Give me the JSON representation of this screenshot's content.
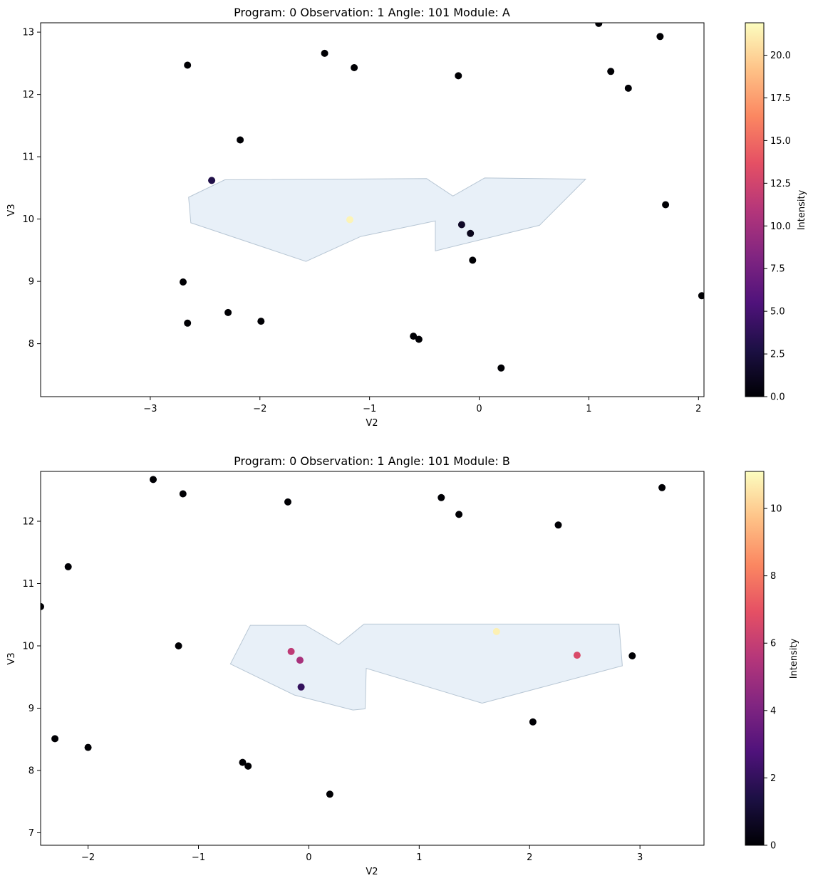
{
  "chart_data": [
    {
      "type": "scatter",
      "title": "Program: 0 Observation: 1 Angle: 101 Module: A",
      "xlabel": "V2",
      "ylabel": "V3",
      "xlim": [
        -4.0,
        2.05
      ],
      "ylim": [
        7.15,
        13.15
      ],
      "xticks": [
        -3,
        -2,
        -1,
        0,
        1,
        2
      ],
      "yticks": [
        8,
        9,
        10,
        11,
        12,
        13
      ],
      "grid": false,
      "colorbar": {
        "label": "Intensity",
        "colormap": "magma",
        "range": [
          0,
          21.9
        ],
        "ticks": [
          "0.0",
          "2.5",
          "5.0",
          "7.5",
          "10.0",
          "12.5",
          "15.0",
          "17.5",
          "20.0"
        ],
        "tick_values": [
          0,
          2.5,
          5,
          7.5,
          10,
          12.5,
          15,
          17.5,
          20
        ]
      },
      "footprint": {
        "fill": "#dce8f4",
        "vertices": [
          [
            -2.65,
            10.35
          ],
          [
            -2.32,
            10.63
          ],
          [
            -0.48,
            10.65
          ],
          [
            -0.24,
            10.37
          ],
          [
            0.05,
            10.66
          ],
          [
            0.97,
            10.64
          ],
          [
            0.55,
            9.9
          ],
          [
            -0.4,
            9.49
          ],
          [
            -0.4,
            9.97
          ],
          [
            -1.08,
            9.72
          ],
          [
            -1.58,
            9.32
          ],
          [
            -2.63,
            9.94
          ]
        ]
      },
      "points": [
        {
          "x": -2.66,
          "y": 12.47,
          "v": 0
        },
        {
          "x": -1.41,
          "y": 12.66,
          "v": 0
        },
        {
          "x": -1.14,
          "y": 12.43,
          "v": 0
        },
        {
          "x": -0.19,
          "y": 12.3,
          "v": 0
        },
        {
          "x": 1.09,
          "y": 13.14,
          "v": 0
        },
        {
          "x": 1.65,
          "y": 12.93,
          "v": 0
        },
        {
          "x": 1.2,
          "y": 12.37,
          "v": 0
        },
        {
          "x": 1.36,
          "y": 12.1,
          "v": 0
        },
        {
          "x": -2.18,
          "y": 11.27,
          "v": 0
        },
        {
          "x": -2.44,
          "y": 10.62,
          "v": 3.0
        },
        {
          "x": -1.18,
          "y": 9.99,
          "v": 21.5
        },
        {
          "x": -0.16,
          "y": 9.91,
          "v": 1.5
        },
        {
          "x": -0.08,
          "y": 9.77,
          "v": 1.0
        },
        {
          "x": -0.06,
          "y": 9.34,
          "v": 0
        },
        {
          "x": 1.7,
          "y": 10.23,
          "v": 0
        },
        {
          "x": -2.7,
          "y": 8.99,
          "v": 0
        },
        {
          "x": -2.29,
          "y": 8.5,
          "v": 0
        },
        {
          "x": -2.66,
          "y": 8.33,
          "v": 0
        },
        {
          "x": -1.99,
          "y": 8.36,
          "v": 0
        },
        {
          "x": -0.6,
          "y": 8.12,
          "v": 0
        },
        {
          "x": -0.55,
          "y": 8.07,
          "v": 0
        },
        {
          "x": 0.2,
          "y": 7.61,
          "v": 0
        },
        {
          "x": 2.03,
          "y": 8.77,
          "v": 0
        }
      ]
    },
    {
      "type": "scatter",
      "title": "Program: 0 Observation: 1 Angle: 101 Module: B",
      "xlabel": "V2",
      "ylabel": "V3",
      "xlim": [
        -2.43,
        3.58
      ],
      "ylim": [
        6.8,
        12.8
      ],
      "xticks": [
        -2,
        -1,
        0,
        1,
        2,
        3
      ],
      "yticks": [
        7,
        8,
        9,
        10,
        11,
        12
      ],
      "grid": false,
      "colorbar": {
        "label": "Intensity",
        "colormap": "magma",
        "range": [
          0,
          11.1
        ],
        "ticks": [
          "0",
          "2",
          "4",
          "6",
          "8",
          "10"
        ],
        "tick_values": [
          0,
          2,
          4,
          6,
          8,
          10
        ]
      },
      "footprint": {
        "fill": "#dce8f4",
        "vertices": [
          [
            -0.53,
            10.33
          ],
          [
            -0.03,
            10.33
          ],
          [
            0.27,
            10.02
          ],
          [
            0.5,
            10.35
          ],
          [
            2.81,
            10.35
          ],
          [
            2.84,
            9.68
          ],
          [
            1.57,
            9.08
          ],
          [
            0.52,
            9.64
          ],
          [
            0.51,
            8.99
          ],
          [
            0.4,
            8.97
          ],
          [
            -0.13,
            9.21
          ],
          [
            -0.71,
            9.71
          ]
        ]
      },
      "points": [
        {
          "x": -1.41,
          "y": 12.67,
          "v": 0
        },
        {
          "x": -1.14,
          "y": 12.44,
          "v": 0
        },
        {
          "x": -0.19,
          "y": 12.31,
          "v": 0
        },
        {
          "x": 1.2,
          "y": 12.38,
          "v": 0
        },
        {
          "x": 1.36,
          "y": 12.11,
          "v": 0
        },
        {
          "x": 2.26,
          "y": 11.94,
          "v": 0
        },
        {
          "x": 3.2,
          "y": 12.54,
          "v": 0
        },
        {
          "x": -2.18,
          "y": 11.27,
          "v": 0
        },
        {
          "x": -2.43,
          "y": 10.63,
          "v": 0
        },
        {
          "x": -1.18,
          "y": 10.0,
          "v": 0
        },
        {
          "x": -0.16,
          "y": 9.91,
          "v": 5.8
        },
        {
          "x": -0.08,
          "y": 9.77,
          "v": 5.2
        },
        {
          "x": -0.07,
          "y": 9.34,
          "v": 2.0
        },
        {
          "x": 1.7,
          "y": 10.23,
          "v": 10.8
        },
        {
          "x": 2.43,
          "y": 9.85,
          "v": 6.6
        },
        {
          "x": 2.93,
          "y": 9.84,
          "v": 0
        },
        {
          "x": -2.3,
          "y": 8.51,
          "v": 0
        },
        {
          "x": -2.0,
          "y": 8.37,
          "v": 0
        },
        {
          "x": -0.6,
          "y": 8.13,
          "v": 0
        },
        {
          "x": -0.55,
          "y": 8.07,
          "v": 0
        },
        {
          "x": 0.19,
          "y": 7.62,
          "v": 0
        },
        {
          "x": 2.03,
          "y": 8.78,
          "v": 0
        }
      ]
    }
  ]
}
